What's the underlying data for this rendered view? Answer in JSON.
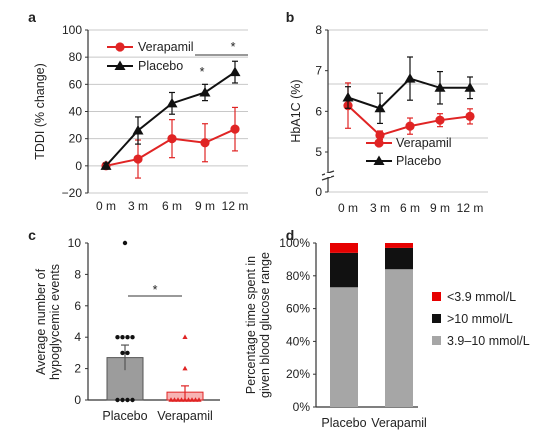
{
  "panel_labels": [
    "a",
    "b",
    "c",
    "d"
  ],
  "chart_data": [
    {
      "panel": "a",
      "type": "line",
      "x": [
        "0 m",
        "3 m",
        "6 m",
        "9 m",
        "12 m"
      ],
      "ylabel": "TDDI (% change)",
      "yticks": [
        "100",
        "80",
        "60",
        "40",
        "20",
        "0",
        "−20"
      ],
      "ylim": [
        -20,
        100
      ],
      "grid": true,
      "legend_position": "top-left",
      "series": [
        {
          "name": "Verapamil",
          "color": "#e02424",
          "marker": "circle",
          "values": [
            0,
            5,
            20,
            17,
            27
          ],
          "err": [
            2,
            14,
            14,
            14,
            16
          ]
        },
        {
          "name": "Placebo",
          "color": "#111111",
          "marker": "triangle",
          "values": [
            0,
            26,
            46,
            54,
            69
          ],
          "err": [
            2,
            10,
            8,
            6,
            8
          ]
        }
      ],
      "significance": [
        "*",
        "*"
      ]
    },
    {
      "panel": "b",
      "type": "line",
      "x": [
        "0 m",
        "3 m",
        "6 m",
        "9 m",
        "12 m"
      ],
      "ylabel": "HbA1C (%)",
      "yticks": [
        "8",
        "7",
        "6",
        "5",
        "0"
      ],
      "ylim": [
        4,
        8
      ],
      "axis_break": true,
      "grid": true,
      "legend_position": "bottom",
      "series": [
        {
          "name": "Verapamil",
          "color": "#e02424",
          "marker": "circle",
          "values": [
            6.6,
            6.05,
            6.22,
            6.33,
            6.4
          ],
          "err": [
            0.42,
            0.08,
            0.15,
            0.12,
            0.14
          ]
        },
        {
          "name": "Placebo",
          "color": "#111111",
          "marker": "triangle",
          "values": [
            6.75,
            6.55,
            7.1,
            6.93,
            6.93
          ],
          "err": [
            0.2,
            0.28,
            0.4,
            0.3,
            0.2
          ]
        }
      ]
    },
    {
      "panel": "c",
      "type": "bar",
      "categories": [
        "Placebo",
        "Verapamil"
      ],
      "ylabel": "Average number of hypoglycemic events",
      "yticks": [
        "10",
        "8",
        "6",
        "4",
        "2",
        "0"
      ],
      "ylim": [
        0,
        10
      ],
      "values": [
        2.7,
        0.5
      ],
      "err": [
        0.8,
        0.4
      ],
      "bar_colors": [
        "#9c9c9c",
        "#f7b3b3"
      ],
      "bar_edges": [
        "#555555",
        "#e02424"
      ],
      "points": [
        [
          10,
          4,
          4,
          4,
          4,
          3,
          3,
          0,
          0,
          0,
          0
        ],
        [
          4,
          2,
          0,
          0,
          0,
          0,
          0,
          0,
          0,
          0,
          0
        ]
      ],
      "significance": "*"
    },
    {
      "panel": "d",
      "type": "bar",
      "stacked": true,
      "categories": [
        "Placebo",
        "Verapamil"
      ],
      "ylabel": "Percentage time spent in given blood glucose range",
      "yticks": [
        "100%",
        "80%",
        "60%",
        "40%",
        "20%",
        "0%"
      ],
      "ylim": [
        0,
        100
      ],
      "legend_position": "right",
      "series": [
        {
          "name": "3.9–10 mmol/L",
          "color": "#a6a6a6",
          "values": [
            73,
            84
          ]
        },
        {
          "name": ">10 mmol/L",
          "color": "#111111",
          "values": [
            21,
            13
          ]
        },
        {
          "name": "<3.9 mmol/L",
          "color": "#e60000",
          "values": [
            6,
            3
          ]
        }
      ]
    }
  ]
}
